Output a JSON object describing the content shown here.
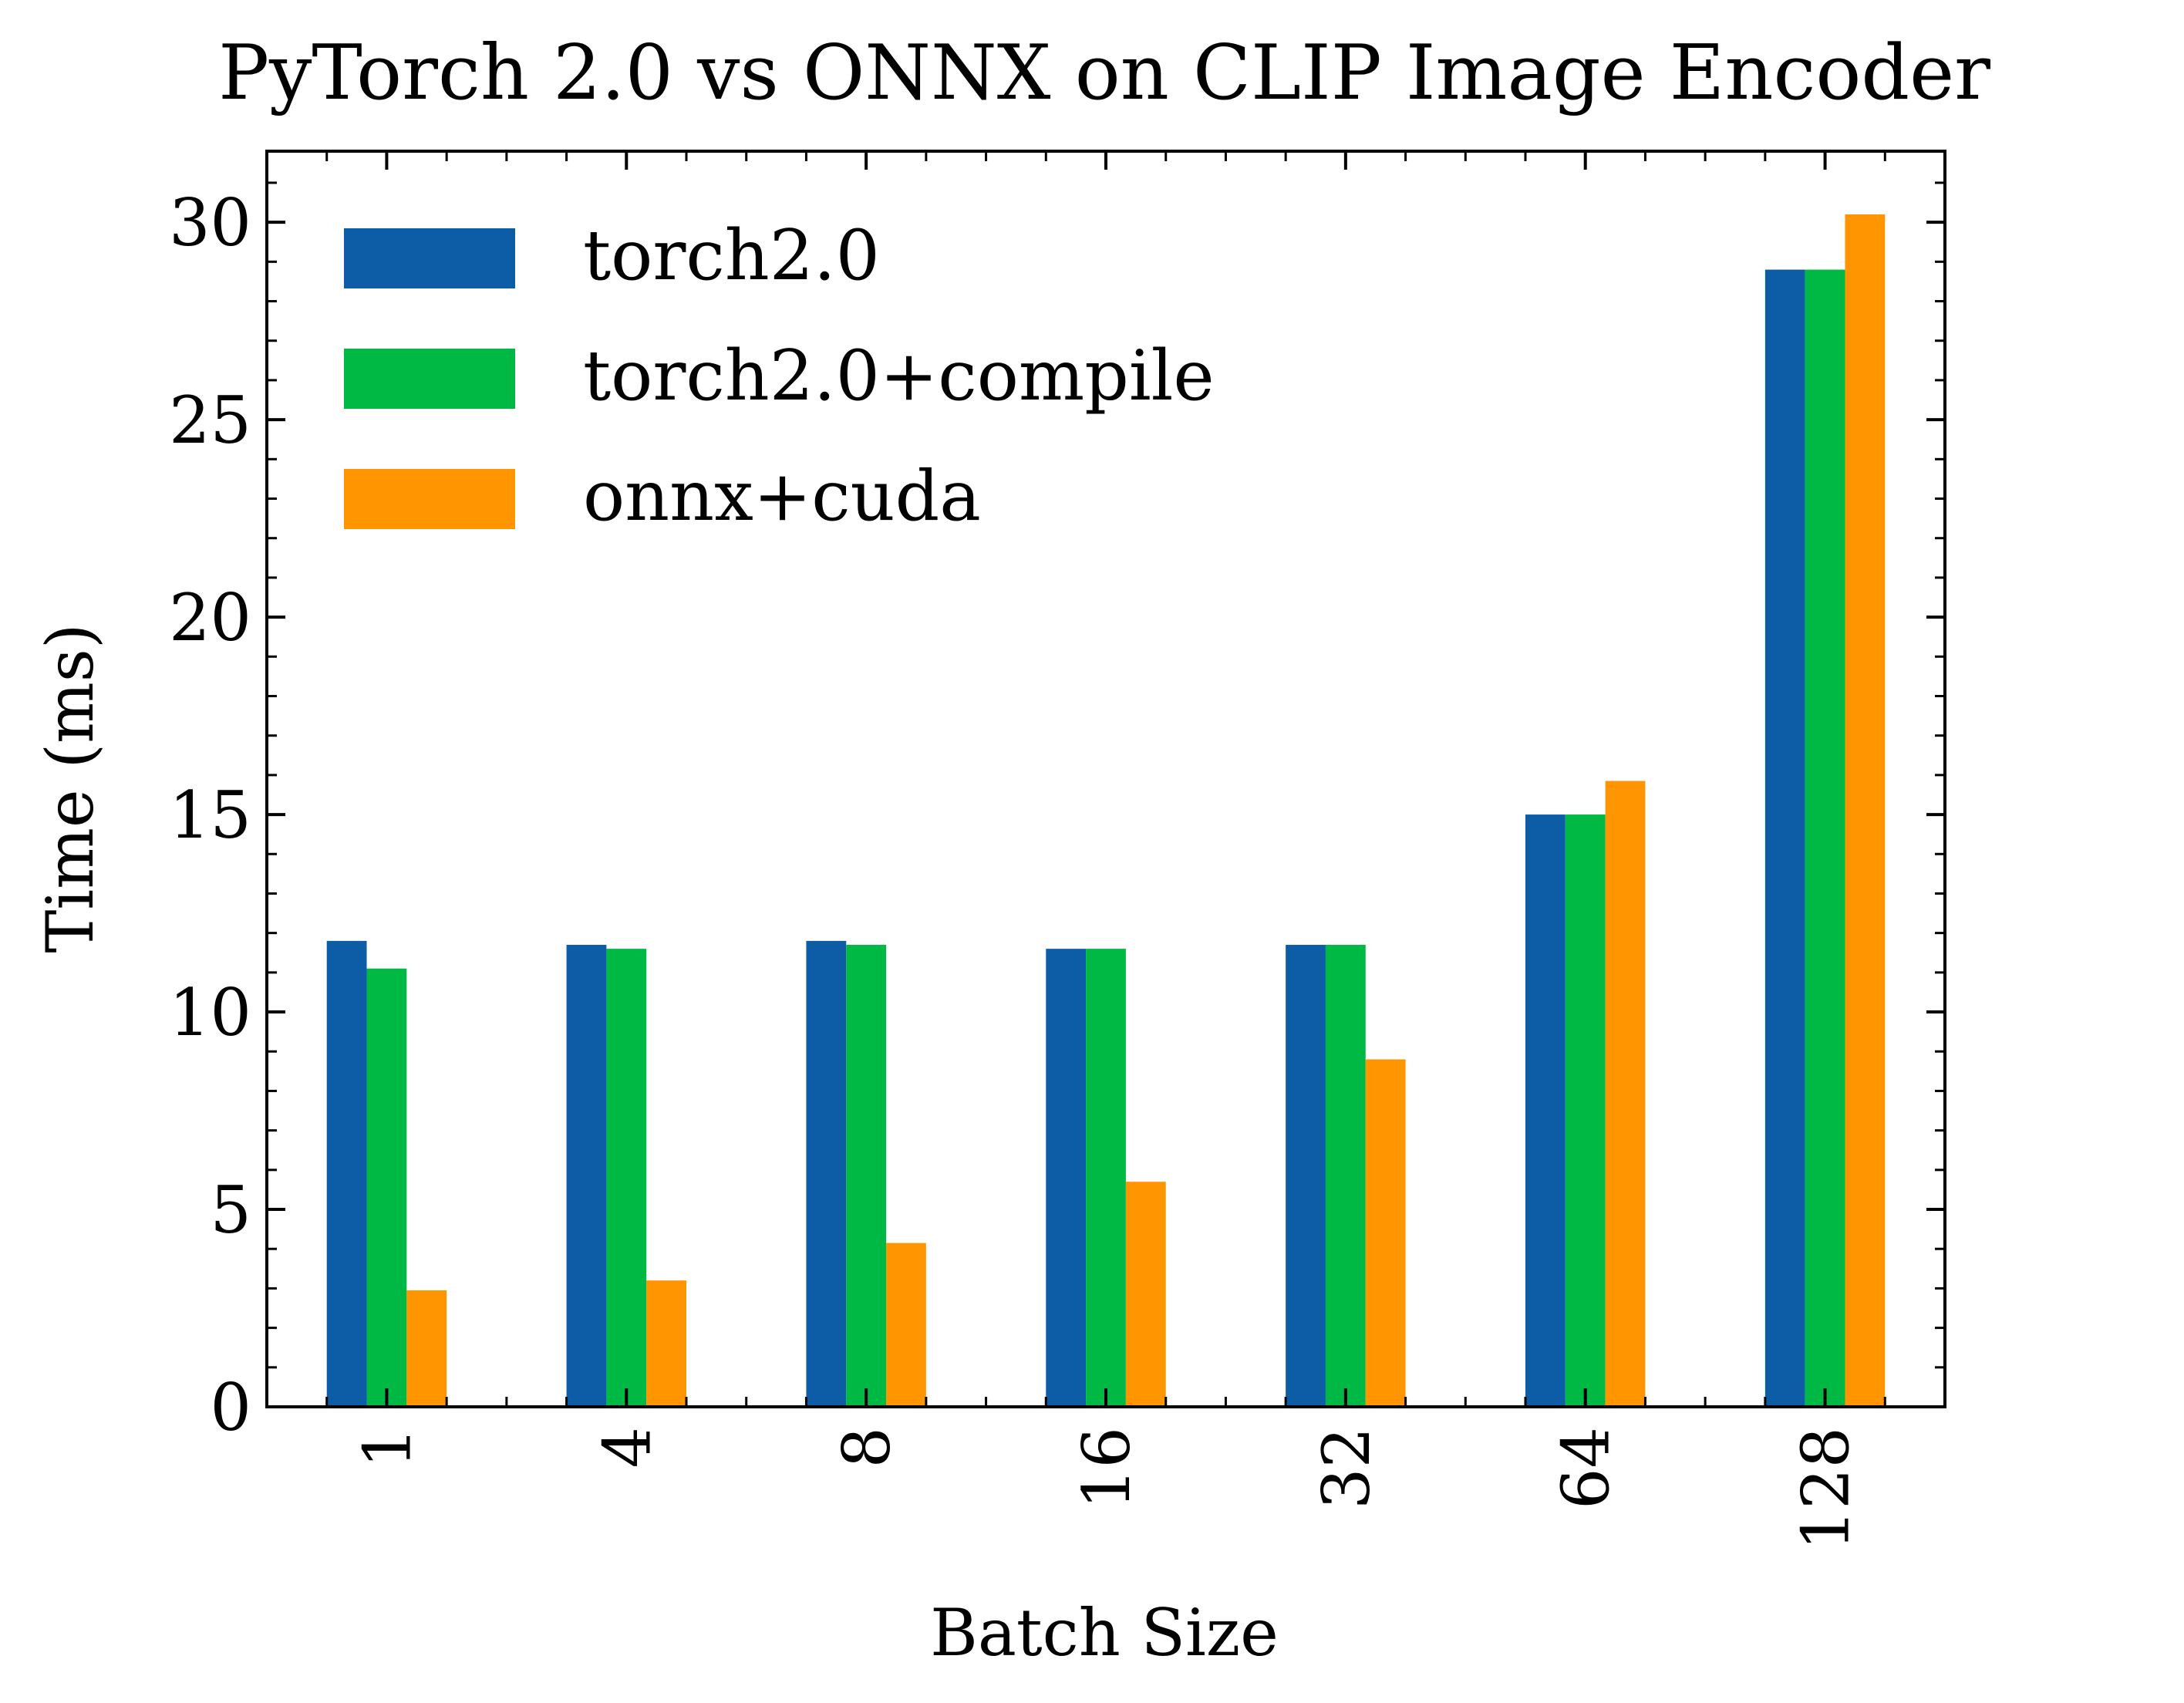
{
  "chart_data": {
    "type": "bar",
    "title": "PyTorch 2.0 vs ONNX on CLIP Image Encoder",
    "xlabel": "Batch Size",
    "ylabel": "Time (ms)",
    "categories": [
      "1",
      "4",
      "8",
      "16",
      "32",
      "64",
      "128"
    ],
    "series": [
      {
        "name": "torch2.0",
        "color": "#0C5DA5",
        "values": [
          11.8,
          11.7,
          11.8,
          11.6,
          11.7,
          15.0,
          28.8
        ]
      },
      {
        "name": "torch2.0+compile",
        "color": "#00B945",
        "values": [
          11.1,
          11.6,
          11.7,
          11.6,
          11.7,
          15.0,
          28.8
        ]
      },
      {
        "name": "onnx+cuda",
        "color": "#FF9500",
        "values": [
          2.95,
          3.2,
          4.15,
          5.7,
          8.8,
          15.85,
          30.2
        ]
      }
    ],
    "ylim": [
      0,
      31.8
    ],
    "yticks": [
      0,
      5,
      10,
      15,
      20,
      25,
      30
    ],
    "y_minor_step": 1,
    "grid": false,
    "legend_position": "top-left",
    "x_tick_rotation": "vertical"
  }
}
